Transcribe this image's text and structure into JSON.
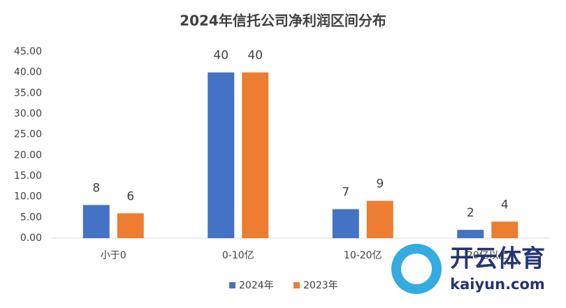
{
  "chart_data": {
    "type": "bar",
    "title": "2024年信托公司净利润区间分布",
    "categories": [
      "小于0",
      "0-10亿",
      "10-20亿",
      "20亿以上"
    ],
    "series": [
      {
        "name": "2024年",
        "color": "#4472c4",
        "values": [
          8,
          40,
          7,
          2
        ]
      },
      {
        "name": "2023年",
        "color": "#ed7d31",
        "values": [
          6,
          40,
          9,
          4
        ]
      }
    ],
    "ylim": [
      0,
      45
    ],
    "yticks": [
      {
        "value": 0,
        "label": "0.00"
      },
      {
        "value": 5,
        "label": "5.00"
      },
      {
        "value": 10,
        "label": "10.00"
      },
      {
        "value": 15,
        "label": "15.00"
      },
      {
        "value": 20,
        "label": "20.00"
      },
      {
        "value": 25,
        "label": "25.00"
      },
      {
        "value": 30,
        "label": "30.00"
      },
      {
        "value": 35,
        "label": "35.00"
      },
      {
        "value": 40,
        "label": "40.00"
      },
      {
        "value": 45,
        "label": "45.00"
      }
    ],
    "grid": false,
    "legend": "bottom"
  },
  "watermark": {
    "brand": "开云体育",
    "url": "kaiyun.com"
  }
}
